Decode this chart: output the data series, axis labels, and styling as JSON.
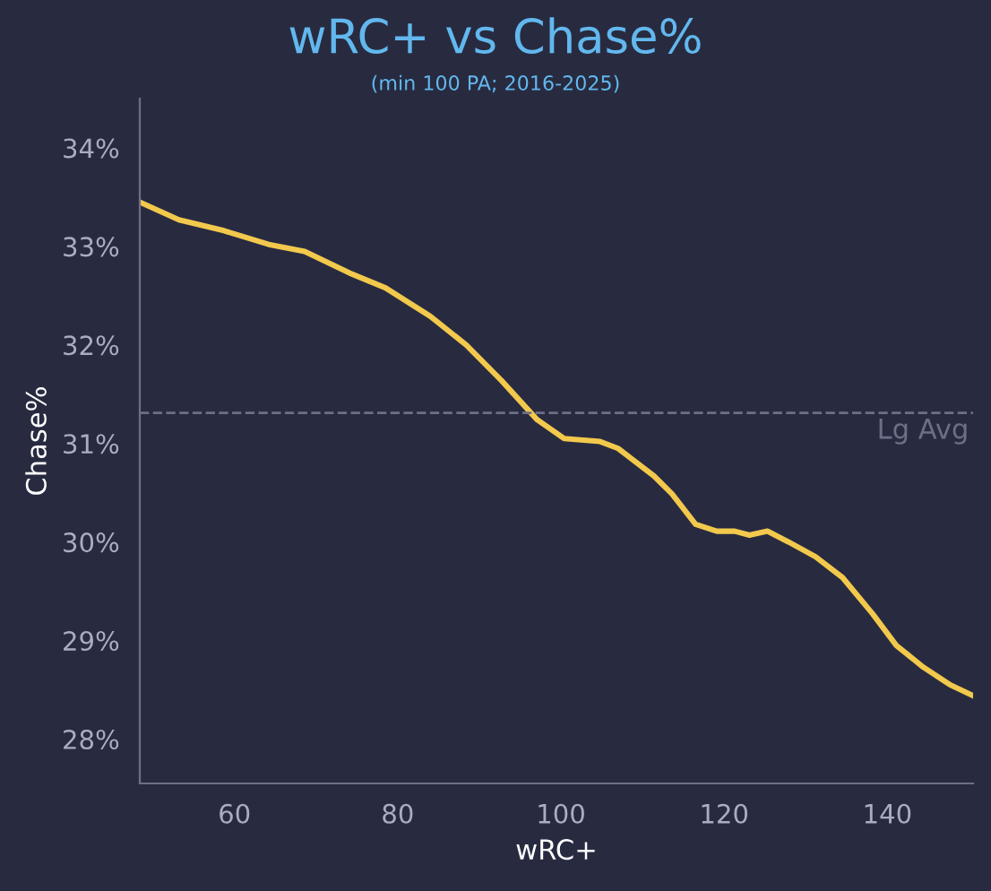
{
  "chart_data": {
    "type": "line",
    "title": "wRC+ vs Chase%",
    "subtitle": "(min 100 PA; 2016-2025)",
    "xlabel": "wRC+",
    "ylabel": "Chase%",
    "x": [
      48.4,
      53.2,
      58.7,
      64.2,
      68.6,
      74.1,
      78.5,
      84.0,
      88.4,
      92.7,
      97.1,
      100.4,
      104.8,
      107.0,
      111.4,
      113.6,
      116.5,
      119.1,
      121.3,
      123.1,
      125.3,
      127.9,
      131.2,
      134.5,
      138.2,
      141.1,
      144.4,
      147.7,
      150.5
    ],
    "series": [
      {
        "color": "#f2c94c",
        "values": [
          33.45,
          33.27,
          33.16,
          33.02,
          32.95,
          32.73,
          32.58,
          32.29,
          32.0,
          31.64,
          31.24,
          31.05,
          31.02,
          30.95,
          30.67,
          30.49,
          30.18,
          30.11,
          30.11,
          30.07,
          30.11,
          30.0,
          29.85,
          29.64,
          29.27,
          28.95,
          28.73,
          28.55,
          28.44
        ]
      }
    ],
    "xlim": [
      48.4,
      150.5
    ],
    "ylim": [
      27.55,
      34.5
    ],
    "xticks": [
      60,
      80,
      100,
      120,
      140
    ],
    "yticks": [
      {
        "value": 28,
        "label": "28%"
      },
      {
        "value": 29,
        "label": "29%"
      },
      {
        "value": 30,
        "label": "30%"
      },
      {
        "value": 31,
        "label": "31%"
      },
      {
        "value": 32,
        "label": "32%"
      },
      {
        "value": 33,
        "label": "33%"
      },
      {
        "value": 34,
        "label": "34%"
      }
    ],
    "ref_lines": [
      {
        "axis": "y",
        "value": 31.31,
        "label": "Lg Avg",
        "color": "#6b7088",
        "line_style": "dashed"
      }
    ],
    "grid": false,
    "legend": false,
    "marker": "none",
    "line_style": "solid"
  }
}
